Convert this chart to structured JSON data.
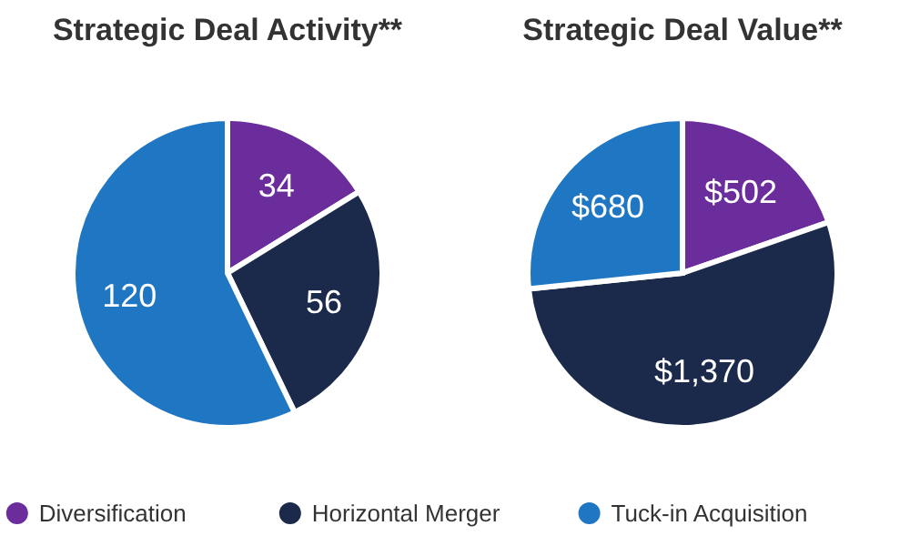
{
  "chart_data": [
    {
      "type": "pie",
      "title": "Strategic Deal Activity**",
      "categories": [
        "Diversification",
        "Horizontal Merger",
        "Tuck-in Acquisition"
      ],
      "values": [
        34,
        56,
        120
      ],
      "colors": [
        "#6b2c9c",
        "#1b2a4a",
        "#1f77c4"
      ],
      "data_labels": true,
      "legend": "bottom"
    },
    {
      "type": "pie",
      "title": "Strategic Deal Value**",
      "categories": [
        null,
        null,
        null
      ],
      "values": [
        502,
        1370,
        680
      ],
      "colors": [
        "#6b2c9c",
        "#1b2a4a",
        "#1f77c4"
      ],
      "value_labels": [
        "$502",
        "$1,370",
        "$680"
      ]
    }
  ]
}
